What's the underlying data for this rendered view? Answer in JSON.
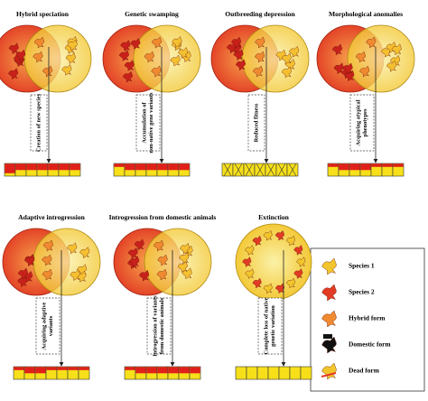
{
  "panels": [
    {
      "title": "Hybrid speciation",
      "caption": [
        "Creation of new species"
      ]
    },
    {
      "title": "Genetic swamping",
      "caption": [
        "Accumulation of",
        "non-native gene variants"
      ]
    },
    {
      "title": "Outbreeding depression",
      "caption": [
        "Reduced fitness"
      ]
    },
    {
      "title": "Morphological anomalies",
      "caption": [
        "Acquiring atypical",
        "phenotypes"
      ]
    },
    {
      "title": "Adaptive introgression",
      "caption": [
        "Acquiring adaptive",
        "variants"
      ]
    },
    {
      "title": "Introgression from domestic animals",
      "caption": [
        "Introgression of variants",
        "from domestic animals"
      ]
    },
    {
      "title": "Extinction",
      "caption": [
        "Complete loss of native",
        "genetic variation"
      ]
    }
  ],
  "legend": [
    "Species 1",
    "Species 2",
    "Hybrid form",
    "Domestic form",
    "Dead form"
  ]
}
